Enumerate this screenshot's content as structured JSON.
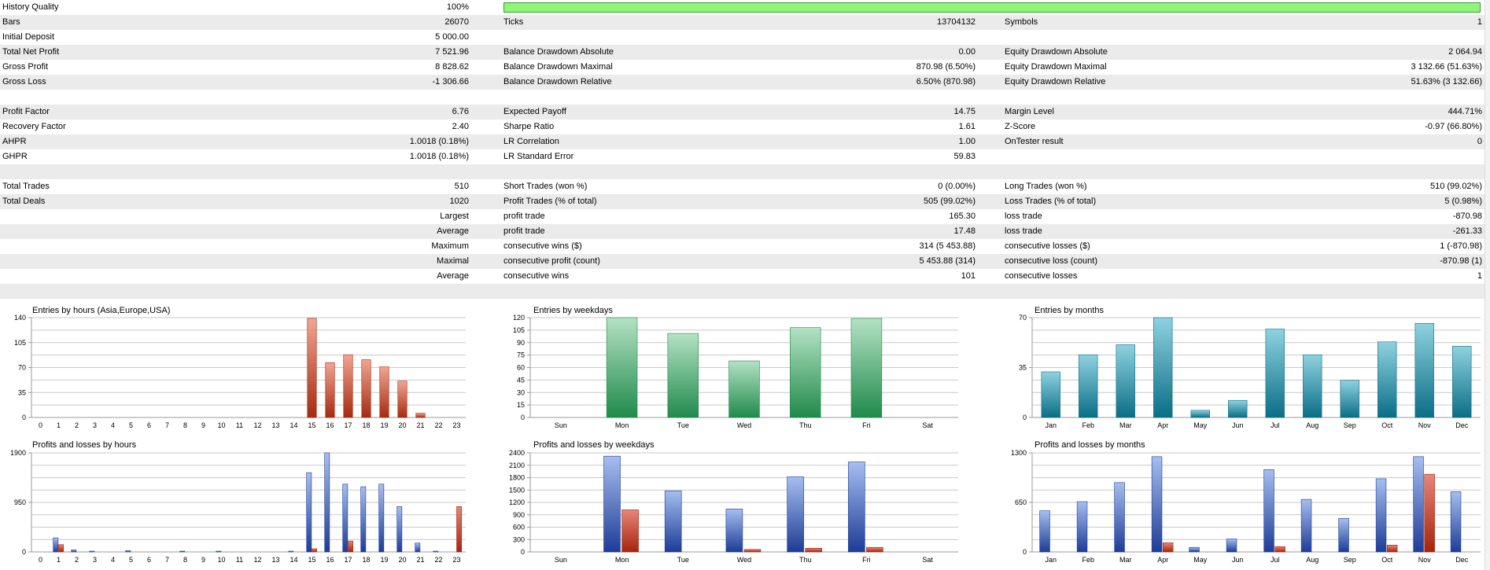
{
  "stats": {
    "history_quality": {
      "label": "History Quality",
      "value": "100%",
      "fraction": 1.0
    },
    "rows": [
      {
        "shade": true,
        "c1": [
          "Bars",
          "26070"
        ],
        "c2": [
          "Ticks",
          "13704132"
        ],
        "c3": [
          "Symbols",
          "1"
        ]
      },
      {
        "shade": false,
        "c1": [
          "Initial Deposit",
          "5 000.00"
        ],
        "c2": [
          "",
          ""
        ],
        "c3": [
          "",
          ""
        ]
      },
      {
        "shade": true,
        "c1": [
          "Total Net Profit",
          "7 521.96"
        ],
        "c2": [
          "Balance Drawdown Absolute",
          "0.00"
        ],
        "c3": [
          "Equity Drawdown Absolute",
          "2 064.94"
        ]
      },
      {
        "shade": false,
        "c1": [
          "Gross Profit",
          "8 828.62"
        ],
        "c2": [
          "Balance Drawdown Maximal",
          "870.98 (6.50%)"
        ],
        "c3": [
          "Equity Drawdown Maximal",
          "3 132.66 (51.63%)"
        ]
      },
      {
        "shade": true,
        "c1": [
          "Gross Loss",
          "-1 306.66"
        ],
        "c2": [
          "Balance Drawdown Relative",
          "6.50% (870.98)"
        ],
        "c3": [
          "Equity Drawdown Relative",
          "51.63% (3 132.66)"
        ]
      },
      {
        "shade": false,
        "c1": [
          "",
          ""
        ],
        "c2": [
          "",
          ""
        ],
        "c3": [
          "",
          ""
        ]
      },
      {
        "shade": true,
        "c1": [
          "Profit Factor",
          "6.76"
        ],
        "c2": [
          "Expected Payoff",
          "14.75"
        ],
        "c3": [
          "Margin Level",
          "444.71%"
        ]
      },
      {
        "shade": false,
        "c1": [
          "Recovery Factor",
          "2.40"
        ],
        "c2": [
          "Sharpe Ratio",
          "1.61"
        ],
        "c3": [
          "Z-Score",
          "-0.97 (66.80%)"
        ]
      },
      {
        "shade": true,
        "c1": [
          "AHPR",
          "1.0018 (0.18%)"
        ],
        "c2": [
          "LR Correlation",
          "1.00"
        ],
        "c3": [
          "OnTester result",
          "0"
        ]
      },
      {
        "shade": false,
        "c1": [
          "GHPR",
          "1.0018 (0.18%)"
        ],
        "c2": [
          "LR Standard Error",
          "59.83"
        ],
        "c3": [
          "",
          ""
        ]
      },
      {
        "shade": true,
        "c1": [
          "",
          ""
        ],
        "c2": [
          "",
          ""
        ],
        "c3": [
          "",
          ""
        ]
      },
      {
        "shade": false,
        "c1": [
          "Total Trades",
          "510"
        ],
        "c2": [
          "Short Trades (won %)",
          "0 (0.00%)"
        ],
        "c3": [
          "Long Trades (won %)",
          "510 (99.02%)"
        ]
      },
      {
        "shade": true,
        "c1": [
          "Total Deals",
          "1020"
        ],
        "c2": [
          "Profit Trades (% of total)",
          "505 (99.02%)"
        ],
        "c3": [
          "Loss Trades (% of total)",
          "5 (0.98%)"
        ]
      },
      {
        "shade": false,
        "c1": [
          "",
          "Largest"
        ],
        "c2": [
          "profit trade",
          "165.30"
        ],
        "c3": [
          "loss trade",
          "-870.98"
        ]
      },
      {
        "shade": true,
        "c1": [
          "",
          "Average"
        ],
        "c2": [
          "profit trade",
          "17.48"
        ],
        "c3": [
          "loss trade",
          "-261.33"
        ]
      },
      {
        "shade": false,
        "c1": [
          "",
          "Maximum"
        ],
        "c2": [
          "consecutive wins ($)",
          "314 (5 453.88)"
        ],
        "c3": [
          "consecutive losses ($)",
          "1 (-870.98)"
        ]
      },
      {
        "shade": true,
        "c1": [
          "",
          "Maximal"
        ],
        "c2": [
          "consecutive profit (count)",
          "5 453.88 (314)"
        ],
        "c3": [
          "consecutive loss (count)",
          "-870.98 (1)"
        ]
      },
      {
        "shade": false,
        "c1": [
          "",
          "Average"
        ],
        "c2": [
          "consecutive wins",
          "101"
        ],
        "c3": [
          "consecutive losses",
          "1"
        ]
      },
      {
        "shade": true,
        "c1": [
          "",
          ""
        ],
        "c2": [
          "",
          ""
        ],
        "c3": [
          "",
          ""
        ]
      }
    ]
  },
  "chart_data": [
    {
      "id": "entries-hours",
      "type": "bar",
      "title": "Entries by hours (Asia,Europe,USA)",
      "categories": [
        "0",
        "1",
        "2",
        "3",
        "4",
        "5",
        "6",
        "7",
        "8",
        "9",
        "10",
        "11",
        "12",
        "13",
        "14",
        "15",
        "16",
        "17",
        "18",
        "19",
        "20",
        "21",
        "22",
        "23"
      ],
      "series": [
        {
          "values": [
            0,
            0,
            0,
            0,
            0,
            0,
            0,
            0,
            0,
            0,
            0,
            0,
            0,
            0,
            0,
            139,
            77,
            88,
            81,
            71,
            51,
            6,
            0,
            0
          ],
          "color_top": "#f1a593",
          "color_bottom": "#a52a10"
        }
      ],
      "ylim": [
        0,
        140
      ],
      "yticks": [
        "0",
        "35",
        "70",
        "105",
        "140"
      ]
    },
    {
      "id": "entries-weekdays",
      "type": "bar",
      "title": "Entries by weekdays",
      "categories": [
        "Sun",
        "Mon",
        "Tue",
        "Wed",
        "Thu",
        "Fri",
        "Sat"
      ],
      "series": [
        {
          "values": [
            0,
            120,
            101,
            68,
            108,
            119,
            0
          ],
          "color_top": "#b4e2c4",
          "color_bottom": "#208a4a"
        }
      ],
      "ylim": [
        0,
        120
      ],
      "yticks": [
        "0",
        "15",
        "30",
        "45",
        "60",
        "75",
        "90",
        "105",
        "120"
      ]
    },
    {
      "id": "entries-months",
      "type": "bar",
      "title": "Entries by months",
      "categories": [
        "Jan",
        "Feb",
        "Mar",
        "Apr",
        "May",
        "Jun",
        "Jul",
        "Aug",
        "Sep",
        "Oct",
        "Nov",
        "Dec"
      ],
      "series": [
        {
          "values": [
            32,
            44,
            51,
            70,
            5,
            12,
            62,
            44,
            26,
            53,
            66,
            50
          ],
          "color_top": "#8fd2e0",
          "color_bottom": "#0a6e86"
        }
      ],
      "ylim": [
        0,
        70
      ],
      "yticks": [
        "0",
        "35",
        "70"
      ]
    },
    {
      "id": "pl-hours",
      "type": "bar",
      "title": "Profits and losses by hours",
      "categories": [
        "0",
        "1",
        "2",
        "3",
        "4",
        "5",
        "6",
        "7",
        "8",
        "9",
        "10",
        "11",
        "12",
        "13",
        "14",
        "15",
        "16",
        "17",
        "18",
        "19",
        "20",
        "21",
        "22",
        "23"
      ],
      "series": [
        {
          "values": [
            0,
            270,
            40,
            15,
            0,
            25,
            0,
            0,
            15,
            0,
            15,
            0,
            0,
            0,
            15,
            1520,
            1900,
            1300,
            1250,
            1300,
            870,
            170,
            15,
            0
          ],
          "color_top": "#a6bef0",
          "color_bottom": "#1d3c96"
        },
        {
          "values": [
            0,
            140,
            0,
            0,
            0,
            0,
            0,
            0,
            0,
            0,
            0,
            0,
            0,
            0,
            0,
            60,
            0,
            210,
            0,
            0,
            0,
            0,
            0,
            870
          ],
          "color_top": "#e8857a",
          "color_bottom": "#a5240c"
        }
      ],
      "ylim": [
        0,
        1900
      ],
      "yticks": [
        "0",
        "950",
        "1900"
      ]
    },
    {
      "id": "pl-weekdays",
      "type": "bar",
      "title": "Profits and losses by weekdays",
      "categories": [
        "Sun",
        "Mon",
        "Tue",
        "Wed",
        "Thu",
        "Fri",
        "Sat"
      ],
      "series": [
        {
          "values": [
            0,
            2320,
            1480,
            1040,
            1820,
            2180,
            0
          ],
          "color_top": "#a6bef0",
          "color_bottom": "#1d3c96"
        },
        {
          "values": [
            0,
            1020,
            0,
            60,
            90,
            110,
            0
          ],
          "color_top": "#e8857a",
          "color_bottom": "#a5240c"
        }
      ],
      "ylim": [
        0,
        2400
      ],
      "yticks": [
        "0",
        "300",
        "600",
        "900",
        "1200",
        "1500",
        "1800",
        "2100",
        "2400"
      ]
    },
    {
      "id": "pl-months",
      "type": "bar",
      "title": "Profits and losses by months",
      "categories": [
        "Jan",
        "Feb",
        "Mar",
        "Apr",
        "May",
        "Jun",
        "Jul",
        "Aug",
        "Sep",
        "Oct",
        "Nov",
        "Dec"
      ],
      "series": [
        {
          "values": [
            540,
            660,
            910,
            1250,
            60,
            170,
            1080,
            690,
            440,
            960,
            1250,
            790
          ],
          "color_top": "#a6bef0",
          "color_bottom": "#1d3c96"
        },
        {
          "values": [
            0,
            0,
            0,
            120,
            0,
            0,
            70,
            0,
            0,
            90,
            1020,
            0
          ],
          "color_top": "#e8857a",
          "color_bottom": "#a5240c"
        }
      ],
      "ylim": [
        0,
        1300
      ],
      "yticks": [
        "0",
        "650",
        "1300"
      ]
    }
  ]
}
